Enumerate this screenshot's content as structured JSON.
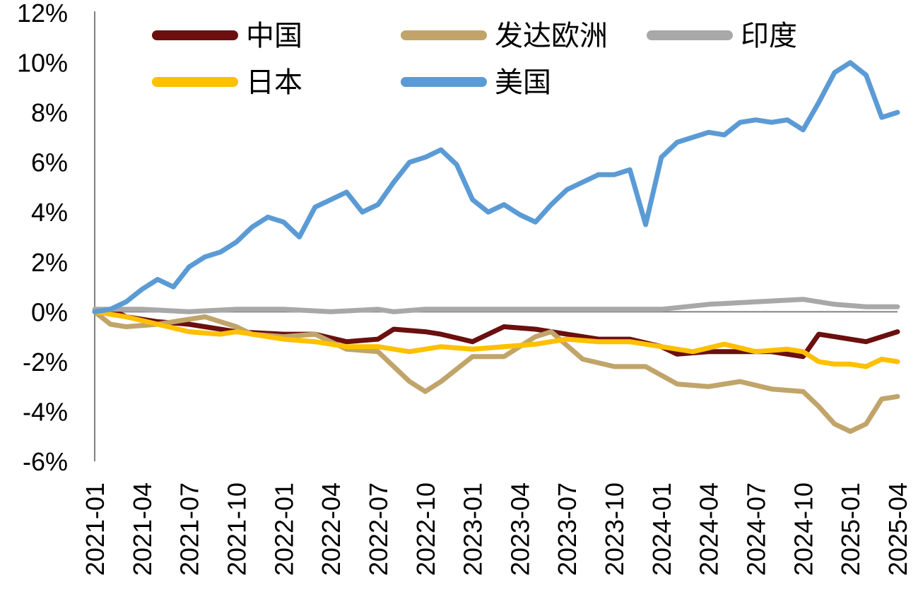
{
  "chart_data": {
    "type": "line",
    "title": "",
    "xlabel": "",
    "ylabel": "",
    "ylim": [
      -6,
      12
    ],
    "y_ticks": [
      "-6%",
      "-4%",
      "-2%",
      "0%",
      "2%",
      "4%",
      "6%",
      "8%",
      "10%",
      "12%"
    ],
    "x_range": [
      "2021-01",
      "2025-04"
    ],
    "x_ticks": [
      "2021-01",
      "2021-04",
      "2021-07",
      "2021-10",
      "2022-01",
      "2022-04",
      "2022-07",
      "2022-10",
      "2023-01",
      "2023-04",
      "2023-07",
      "2023-10",
      "2024-01",
      "2024-04",
      "2024-07",
      "2024-10",
      "2025-01",
      "2025-04"
    ],
    "grid": false,
    "legend_position": "top",
    "series": [
      {
        "name": "中国",
        "color": "#6B0F0F",
        "x": [
          "2021-01",
          "2021-02",
          "2021-03",
          "2021-05",
          "2021-07",
          "2021-10",
          "2022-01",
          "2022-03",
          "2022-05",
          "2022-07",
          "2022-08",
          "2022-10",
          "2022-11",
          "2023-01",
          "2023-03",
          "2023-05",
          "2023-07",
          "2023-09",
          "2023-11",
          "2024-01",
          "2024-02",
          "2024-04",
          "2024-06",
          "2024-08",
          "2024-10",
          "2024-11",
          "2024-12",
          "2025-02",
          "2025-04"
        ],
        "values": [
          0,
          0.1,
          -0.2,
          -0.4,
          -0.5,
          -0.8,
          -0.9,
          -0.9,
          -1.2,
          -1.1,
          -0.7,
          -0.8,
          -0.9,
          -1.2,
          -0.6,
          -0.7,
          -0.9,
          -1.1,
          -1.1,
          -1.4,
          -1.7,
          -1.6,
          -1.6,
          -1.6,
          -1.8,
          -0.9,
          -1.0,
          -1.2,
          -0.8
        ]
      },
      {
        "name": "发达欧洲",
        "color": "#C1A46A",
        "x": [
          "2021-01",
          "2021-02",
          "2021-03",
          "2021-05",
          "2021-07",
          "2021-08",
          "2021-10",
          "2021-11",
          "2022-01",
          "2022-03",
          "2022-05",
          "2022-07",
          "2022-09",
          "2022-10",
          "2022-11",
          "2023-01",
          "2023-03",
          "2023-05",
          "2023-06",
          "2023-08",
          "2023-10",
          "2023-12",
          "2024-02",
          "2024-04",
          "2024-06",
          "2024-08",
          "2024-10",
          "2024-11",
          "2024-12",
          "2025-01",
          "2025-02",
          "2025-03",
          "2025-04"
        ],
        "values": [
          0,
          -0.5,
          -0.6,
          -0.5,
          -0.3,
          -0.2,
          -0.6,
          -0.9,
          -1.0,
          -0.9,
          -1.5,
          -1.6,
          -2.8,
          -3.2,
          -2.8,
          -1.8,
          -1.8,
          -1.0,
          -0.8,
          -1.9,
          -2.2,
          -2.2,
          -2.9,
          -3.0,
          -2.8,
          -3.1,
          -3.2,
          -3.8,
          -4.5,
          -4.8,
          -4.5,
          -3.5,
          -3.4
        ]
      },
      {
        "name": "印度",
        "color": "#A8A8A8",
        "x": [
          "2021-01",
          "2021-04",
          "2021-07",
          "2021-10",
          "2022-01",
          "2022-04",
          "2022-07",
          "2022-08",
          "2022-10",
          "2023-01",
          "2023-04",
          "2023-07",
          "2023-10",
          "2024-01",
          "2024-04",
          "2024-07",
          "2024-10",
          "2024-12",
          "2025-02",
          "2025-04"
        ],
        "values": [
          0.1,
          0.1,
          0.0,
          0.1,
          0.1,
          0.0,
          0.1,
          0.0,
          0.1,
          0.1,
          0.1,
          0.1,
          0.1,
          0.1,
          0.3,
          0.4,
          0.5,
          0.3,
          0.2,
          0.2
        ]
      },
      {
        "name": "日本",
        "color": "#FFC000",
        "x": [
          "2021-01",
          "2021-03",
          "2021-05",
          "2021-07",
          "2021-09",
          "2021-10",
          "2022-01",
          "2022-03",
          "2022-05",
          "2022-07",
          "2022-09",
          "2022-11",
          "2023-01",
          "2023-03",
          "2023-05",
          "2023-07",
          "2023-09",
          "2023-11",
          "2024-01",
          "2024-03",
          "2024-05",
          "2024-07",
          "2024-09",
          "2024-10",
          "2024-11",
          "2024-12",
          "2025-01",
          "2025-02",
          "2025-03",
          "2025-04"
        ],
        "values": [
          0,
          -0.2,
          -0.5,
          -0.8,
          -0.9,
          -0.8,
          -1.1,
          -1.2,
          -1.4,
          -1.4,
          -1.6,
          -1.4,
          -1.5,
          -1.4,
          -1.3,
          -1.1,
          -1.2,
          -1.2,
          -1.4,
          -1.6,
          -1.3,
          -1.6,
          -1.5,
          -1.6,
          -2.0,
          -2.1,
          -2.1,
          -2.2,
          -1.9,
          -2.0
        ]
      },
      {
        "name": "美国",
        "color": "#5B9BD5",
        "x": [
          "2021-01",
          "2021-02",
          "2021-03",
          "2021-04",
          "2021-05",
          "2021-06",
          "2021-07",
          "2021-08",
          "2021-09",
          "2021-10",
          "2021-11",
          "2021-12",
          "2022-01",
          "2022-02",
          "2022-03",
          "2022-04",
          "2022-05",
          "2022-06",
          "2022-07",
          "2022-08",
          "2022-09",
          "2022-10",
          "2022-11",
          "2022-12",
          "2023-01",
          "2023-02",
          "2023-03",
          "2023-04",
          "2023-05",
          "2023-06",
          "2023-07",
          "2023-08",
          "2023-09",
          "2023-10",
          "2023-11",
          "2023-12",
          "2024-01",
          "2024-02",
          "2024-03",
          "2024-04",
          "2024-05",
          "2024-06",
          "2024-07",
          "2024-08",
          "2024-09",
          "2024-10",
          "2024-11",
          "2024-12",
          "2025-01",
          "2025-02",
          "2025-03",
          "2025-04"
        ],
        "values": [
          0,
          0.1,
          0.4,
          0.9,
          1.3,
          1.0,
          1.8,
          2.2,
          2.4,
          2.8,
          3.4,
          3.8,
          3.6,
          3.0,
          4.2,
          4.5,
          4.8,
          4.0,
          4.3,
          5.2,
          6.0,
          6.2,
          6.5,
          5.9,
          4.5,
          4.0,
          4.3,
          3.9,
          3.6,
          4.3,
          4.9,
          5.2,
          5.5,
          5.5,
          5.7,
          3.5,
          6.2,
          6.8,
          7.0,
          7.2,
          7.1,
          7.6,
          7.7,
          7.6,
          7.7,
          7.3,
          8.4,
          9.6,
          10.0,
          9.5,
          7.8,
          8.0
        ]
      }
    ]
  }
}
